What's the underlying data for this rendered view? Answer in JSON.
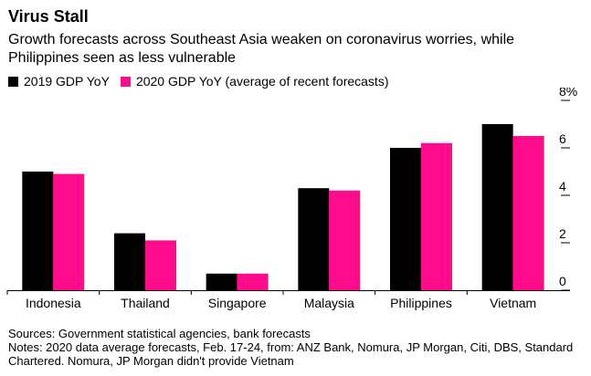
{
  "title": "Virus Stall",
  "subtitle": "Growth forecasts across Southeast Asia weaken on coronavirus worries, while Philippines seen as less vulnerable",
  "sources": "Sources: Government statistical agencies, bank forecasts",
  "notes": "Notes: 2020 data average forecasts, Feb. 17-24, from: ANZ Bank, Nomura, JP Morgan, Citi, DBS, Standard Chartered. Nomura, JP Morgan didn't provide Vietnam",
  "colors": {
    "series_2019": "#000000",
    "series_2020": "#ff0b8b"
  },
  "chart_data": {
    "type": "bar",
    "title": "Virus Stall",
    "categories": [
      "Indonesia",
      "Thailand",
      "Singapore",
      "Malaysia",
      "Philippines",
      "Vietnam"
    ],
    "series": [
      {
        "name": "2019 GDP YoY",
        "values": [
          5.0,
          2.4,
          0.7,
          4.3,
          6.0,
          7.0
        ],
        "color": "#000000"
      },
      {
        "name": "2020 GDP YoY (average of recent forecasts)",
        "values": [
          4.9,
          2.1,
          0.7,
          4.2,
          6.2,
          6.5
        ],
        "color": "#ff0b8b"
      }
    ],
    "ylim": [
      0,
      8
    ],
    "yticks": [
      0,
      2,
      4,
      6,
      8
    ],
    "ytick_labels": [
      "0",
      "2",
      "4",
      "6",
      "8%"
    ],
    "y_axis_side": "right",
    "grid": false,
    "legend": "top-left"
  }
}
